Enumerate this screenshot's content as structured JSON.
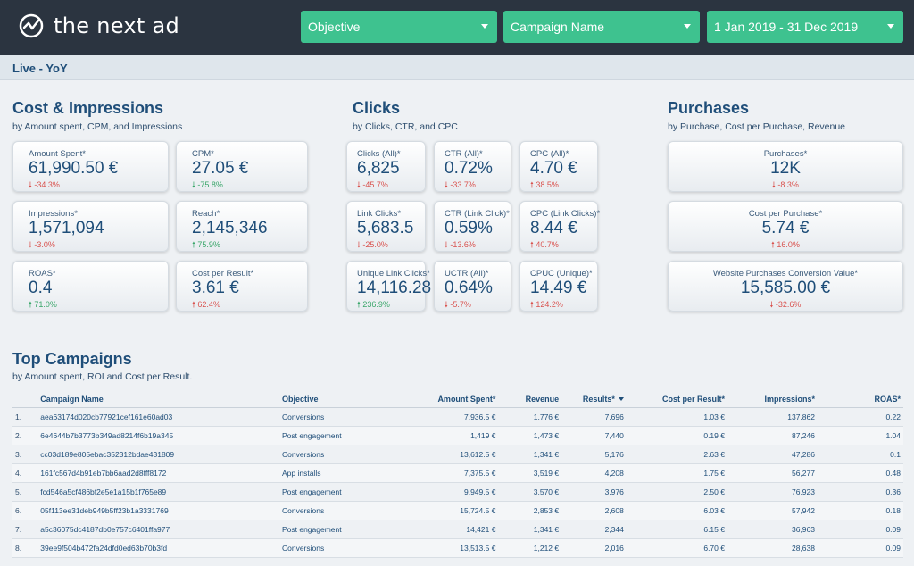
{
  "header": {
    "brand": "the next ad",
    "filters": [
      {
        "label": "Objective"
      },
      {
        "label": "Campaign Name"
      },
      {
        "label": "1 Jan 2019 - 31 Dec 2019"
      }
    ]
  },
  "subbar": {
    "label": "Live - YoY"
  },
  "sections": {
    "cost": {
      "title": "Cost & Impressions",
      "subtitle": "by Amount spent, CPM, and Impressions"
    },
    "clicks": {
      "title": "Clicks",
      "subtitle": "by Clicks, CTR, and CPC"
    },
    "purchases": {
      "title": "Purchases",
      "subtitle": "by Purchase, Cost per Purchase, Revenue"
    },
    "campaigns": {
      "title": "Top Campaigns",
      "subtitle": "by Amount spent, ROI and Cost per Result."
    }
  },
  "cards": {
    "amount_spent": {
      "label": "Amount Spent*",
      "value": "61,990.50 €",
      "delta": "-34.3%",
      "trend": "down"
    },
    "cpm": {
      "label": "CPM*",
      "value": "27.05 €",
      "delta": "-75.8%",
      "trend": "down-good"
    },
    "impressions": {
      "label": "Impressions*",
      "value": "1,571,094",
      "delta": "-3.0%",
      "trend": "down"
    },
    "reach": {
      "label": "Reach*",
      "value": "2,145,346",
      "delta": "75.9%",
      "trend": "up-good"
    },
    "roas": {
      "label": "ROAS*",
      "value": "0.4",
      "delta": "71.0%",
      "trend": "up-good"
    },
    "cost_per_result": {
      "label": "Cost per Result*",
      "value": "3.61 €",
      "delta": "62.4%",
      "trend": "up-bad"
    },
    "clicks_all": {
      "label": "Clicks (All)*",
      "value": "6,825",
      "delta": "-45.7%",
      "trend": "down"
    },
    "ctr_all": {
      "label": "CTR (All)*",
      "value": "0.72%",
      "delta": "-33.7%",
      "trend": "down"
    },
    "cpc_all": {
      "label": "CPC (All)*",
      "value": "4.70 €",
      "delta": "38.5%",
      "trend": "up-bad"
    },
    "link_clicks": {
      "label": "Link Clicks*",
      "value": "5,683.5",
      "delta": "-25.0%",
      "trend": "down"
    },
    "ctr_link": {
      "label": "CTR (Link Click)*",
      "value": "0.59%",
      "delta": "-13.6%",
      "trend": "down"
    },
    "cpc_link": {
      "label": "CPC (Link Clicks)*",
      "value": "8.44 €",
      "delta": "40.7%",
      "trend": "up-bad"
    },
    "unique_link_clicks": {
      "label": "Unique Link Clicks*",
      "value": "14,116.28",
      "delta": "236.9%",
      "trend": "up-good"
    },
    "uctr_all": {
      "label": "UCTR (All)*",
      "value": "0.64%",
      "delta": "-5.7%",
      "trend": "down"
    },
    "cpuc_unique": {
      "label": "CPUC (Unique)*",
      "value": "14.49 €",
      "delta": "124.2%",
      "trend": "up-bad"
    },
    "purchases": {
      "label": "Purchases*",
      "value": "12K",
      "delta": "-8.3%",
      "trend": "down"
    },
    "cost_per_purchase": {
      "label": "Cost per Purchase*",
      "value": "5.74 €",
      "delta": "16.0%",
      "trend": "up-bad"
    },
    "website_purchases_value": {
      "label": "Website Purchases Conversion Value*",
      "value": "15,585.00 €",
      "delta": "-32.6%",
      "trend": "down"
    }
  },
  "table": {
    "columns": [
      "Campaign Name",
      "Objective",
      "Amount Spent*",
      "Revenue",
      "Results*",
      "Cost per Result*",
      "Impressions*",
      "ROAS*"
    ],
    "rows": [
      {
        "num": "1.",
        "name": "aea63174d020cb77921cef161e60ad03",
        "objective": "Conversions",
        "spent": "7,936.5 €",
        "revenue": "1,776 €",
        "results": "7,696",
        "cpr": "1.03 €",
        "impressions": "137,862",
        "roas": "0.22"
      },
      {
        "num": "2.",
        "name": "6e4644b7b3773b349ad8214f6b19a345",
        "objective": "Post engagement",
        "spent": "1,419 €",
        "revenue": "1,473 €",
        "results": "7,440",
        "cpr": "0.19 €",
        "impressions": "87,246",
        "roas": "1.04"
      },
      {
        "num": "3.",
        "name": "cc03d189e805ebac352312bdae431809",
        "objective": "Conversions",
        "spent": "13,612.5 €",
        "revenue": "1,341 €",
        "results": "5,176",
        "cpr": "2.63 €",
        "impressions": "47,286",
        "roas": "0.1"
      },
      {
        "num": "4.",
        "name": "161fc567d4b91eb7bb6aad2d8fff8172",
        "objective": "App installs",
        "spent": "7,375.5 €",
        "revenue": "3,519 €",
        "results": "4,208",
        "cpr": "1.75 €",
        "impressions": "56,277",
        "roas": "0.48"
      },
      {
        "num": "5.",
        "name": "fcd546a5cf486bf2e5e1a15b1f765e89",
        "objective": "Post engagement",
        "spent": "9,949.5 €",
        "revenue": "3,570 €",
        "results": "3,976",
        "cpr": "2.50 €",
        "impressions": "76,923",
        "roas": "0.36"
      },
      {
        "num": "6.",
        "name": "05f113ee31deb949b5ff23b1a3331769",
        "objective": "Conversions",
        "spent": "15,724.5 €",
        "revenue": "2,853 €",
        "results": "2,608",
        "cpr": "6.03 €",
        "impressions": "57,942",
        "roas": "0.18"
      },
      {
        "num": "7.",
        "name": "a5c36075dc4187db0e757c6401ffa977",
        "objective": "Post engagement",
        "spent": "14,421 €",
        "revenue": "1,341 €",
        "results": "2,344",
        "cpr": "6.15 €",
        "impressions": "36,963",
        "roas": "0.09"
      },
      {
        "num": "8.",
        "name": "39ee9f504b472fa24dfd0ed63b70b3fd",
        "objective": "Conversions",
        "spent": "13,513.5 €",
        "revenue": "1,212 €",
        "results": "2,016",
        "cpr": "6.70 €",
        "impressions": "28,638",
        "roas": "0.09"
      }
    ]
  },
  "colors": {
    "header_bg": "#2b3440",
    "filter_bg": "#3ec28f",
    "title": "#1f4e79",
    "negative": "#d9534f",
    "positive": "#3aa66a"
  }
}
